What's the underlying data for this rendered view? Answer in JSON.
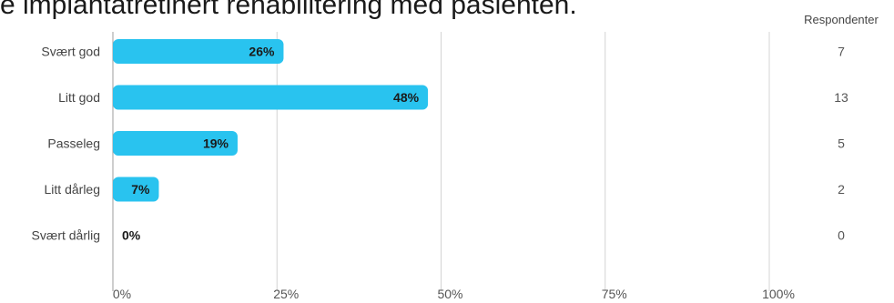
{
  "chart_data": {
    "type": "bar",
    "orientation": "horizontal",
    "title": "e implantatretinert rehabilitering med pasienten.",
    "categories": [
      "Svært god",
      "Litt god",
      "Passeleg",
      "Litt dårleg",
      "Svært dårlig"
    ],
    "values": [
      26,
      48,
      19,
      7,
      0
    ],
    "value_labels": [
      "26%",
      "48%",
      "19%",
      "7%",
      "0%"
    ],
    "xlim": [
      0,
      100
    ],
    "x_ticks": [
      "0%",
      "25%",
      "50%",
      "75%",
      "100%"
    ],
    "grid": true,
    "bar_color": "#29c3ef",
    "respondents_header": "Respondenter",
    "respondents": [
      "7",
      "13",
      "5",
      "2",
      "0"
    ]
  }
}
